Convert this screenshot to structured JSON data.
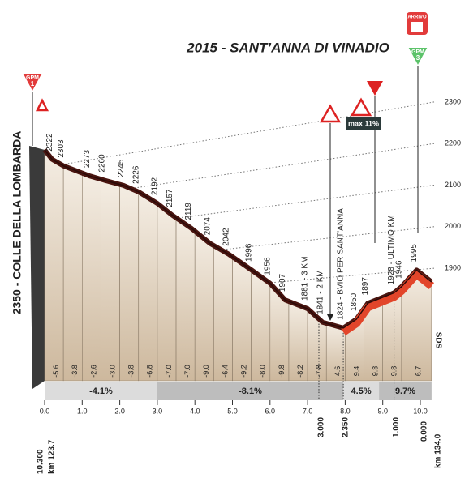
{
  "chart_data": {
    "type": "area",
    "title": "2015 - SANT’ANNA DI VINADIO",
    "x": [
      0,
      0.2,
      0.5,
      1.2,
      1.6,
      2.1,
      2.5,
      3.0,
      3.4,
      3.9,
      4.4,
      4.9,
      5.5,
      6.0,
      6.4,
      7.0,
      7.4,
      7.95,
      8.3,
      8.6,
      9.3,
      9.5,
      9.9,
      10.3
    ],
    "values": [
      2350,
      2322,
      2303,
      2273,
      2260,
      2245,
      2226,
      2192,
      2157,
      2119,
      2074,
      2042,
      1996,
      1956,
      1907,
      1881,
      1841,
      1824,
      1850,
      1897,
      1928,
      1946,
      1995,
      1960
    ],
    "value_labels": [
      "2350 - COLLE DELLA LOMBARDA",
      "2322",
      "2303",
      "2273",
      "2260",
      "2245",
      "2226",
      "2192",
      "2157",
      "2119",
      "2074",
      "2042",
      "1996",
      "1956",
      "1907",
      "1881 - 3 KM",
      "1841 - 2 KM",
      "1824 - BVIO PER SANT’ANNA",
      "1850",
      "1897",
      "1928 - ULTIMO KM",
      "1946",
      "1995",
      null
    ],
    "xlim": [
      0,
      10.3
    ],
    "xticks": [
      {
        "value": 0,
        "label": "0.0"
      },
      {
        "value": 1,
        "label": "1.0"
      },
      {
        "value": 2,
        "label": "2.0"
      },
      {
        "value": 3,
        "label": "3.0"
      },
      {
        "value": 4,
        "label": "4.0"
      },
      {
        "value": 5,
        "label": "5.0"
      },
      {
        "value": 6,
        "label": "6.0"
      },
      {
        "value": 7,
        "label": "7.0"
      },
      {
        "value": 8,
        "label": "8.0"
      },
      {
        "value": 9,
        "label": "9.0"
      },
      {
        "value": 10,
        "label": "10.0"
      }
    ],
    "ylim": [
      1500,
      2400
    ],
    "yticks": [
      1900,
      2000,
      2100,
      2200,
      2300
    ],
    "gradients": [
      -5.6,
      -3.8,
      -2.6,
      -3.0,
      -3.8,
      -6.8,
      -7.0,
      -7.0,
      -9.0,
      -6.4,
      -9.2,
      -8.0,
      -9.8,
      -8.2,
      -7.8,
      4.6,
      9.4,
      9.8,
      9.8,
      6.7
    ],
    "gradient_labels": [
      "-5.6",
      "-3.8",
      "-2.6",
      "-3.0",
      "-3.8",
      "-6.8",
      "-7.0",
      "-7.0",
      "-9.0",
      "-6.4",
      "-9.2",
      "-8.0",
      "-9.8",
      "-8.2",
      "-7.8",
      "4.6",
      "9.4",
      "9.8",
      "9.8",
      "6.7"
    ],
    "sectors": [
      {
        "value": -4.1,
        "label": "-4.1%"
      },
      {
        "value": -8.1,
        "label": "-8.1%"
      },
      {
        "value": 4.5,
        "label": "4.5%"
      },
      {
        "value": 9.7,
        "label": "9.7%"
      }
    ],
    "sector_km": [
      0,
      3.0,
      7.95,
      8.9,
      10.3
    ],
    "distance_markers": [
      {
        "km": 7.3,
        "label": "3.000"
      },
      {
        "km": 7.95,
        "label": "2.350"
      },
      {
        "km": 9.3,
        "label": "1.000"
      }
    ],
    "start": {
      "distance": "10.300",
      "km": "km 123.7"
    },
    "finish": {
      "distance": "0.000",
      "km": "km 134.0"
    },
    "signs": {
      "gpm1": {
        "label": "GPM",
        "number": "1"
      },
      "gpm3": {
        "label": "GPM",
        "number": "3"
      },
      "arrivo": "ARRIVO",
      "max_grade": "max 11%",
      "sds": "SDS"
    },
    "color": "#e2452a"
  }
}
